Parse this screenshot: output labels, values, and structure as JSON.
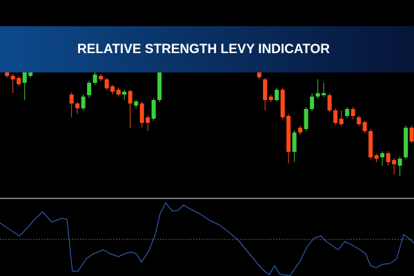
{
  "chart_data": [
    {
      "type": "candlestick",
      "title": "RELATIVE STRENGTH LEVY INDICATOR",
      "x": [
        0,
        1,
        2,
        3,
        4,
        11,
        12,
        13,
        14,
        15,
        16,
        17,
        18,
        19,
        20,
        21,
        22,
        23,
        24,
        25,
        26,
        43,
        44,
        45,
        46,
        47,
        48,
        49,
        50,
        51,
        52,
        53,
        54,
        55,
        56,
        57,
        58,
        59,
        60,
        61,
        62,
        63,
        64,
        65,
        66,
        67,
        68,
        69
      ],
      "open": [
        180,
        175,
        172,
        165,
        175,
        148,
        135,
        128,
        147,
        165,
        175,
        170,
        160,
        155,
        148,
        153,
        132,
        135,
        115,
        113,
        140,
        180,
        170,
        145,
        140,
        155,
        117,
        65,
        100,
        98,
        127,
        145,
        147,
        147,
        125,
        113,
        117,
        127,
        115,
        108,
        95,
        60,
        57,
        63,
        53,
        45,
        57,
        100
      ],
      "high": [
        182,
        178,
        175,
        183,
        183,
        151,
        137,
        148,
        168,
        180,
        178,
        172,
        162,
        158,
        155,
        155,
        140,
        138,
        118,
        143,
        183,
        183,
        172,
        148,
        158,
        158,
        120,
        96,
        103,
        130,
        150,
        170,
        165,
        150,
        128,
        125,
        130,
        130,
        118,
        110,
        98,
        62,
        66,
        66,
        56,
        58,
        103,
        103
      ],
      "low": [
        172,
        150,
        160,
        140,
        172,
        115,
        120,
        125,
        143,
        162,
        167,
        154,
        148,
        145,
        140,
        100,
        128,
        100,
        95,
        110,
        137,
        170,
        125,
        137,
        138,
        112,
        48,
        50,
        90,
        95,
        124,
        142,
        144,
        122,
        104,
        102,
        114,
        112,
        102,
        92,
        54,
        50,
        45,
        45,
        32,
        30,
        55,
        78
      ],
      "close": [
        175,
        170,
        163,
        180,
        180,
        135,
        128,
        145,
        165,
        177,
        170,
        157,
        152,
        148,
        152,
        135,
        138,
        107,
        107,
        140,
        180,
        173,
        140,
        140,
        155,
        115,
        65,
        93,
        93,
        127,
        145,
        150,
        150,
        125,
        107,
        105,
        127,
        117,
        105,
        95,
        57,
        55,
        63,
        50,
        47,
        55,
        100,
        80
      ],
      "up_color": "#3ccf3c",
      "down_color": "#ff4a1c",
      "xlim": [
        -1.2,
        69.4
      ],
      "ylim": [
        0,
        200
      ]
    },
    {
      "type": "line",
      "x": [
        0,
        10,
        28,
        40,
        50,
        62,
        75,
        90,
        97,
        105,
        113,
        125,
        135,
        150,
        160,
        172,
        180,
        190,
        198,
        205,
        215,
        225,
        232,
        240,
        250,
        258,
        266,
        276,
        290,
        305,
        318,
        330,
        345,
        365,
        380,
        390,
        398,
        405,
        420,
        435,
        445,
        455,
        465,
        473,
        480,
        490,
        500,
        510,
        522,
        530,
        537,
        545,
        555,
        565,
        575,
        585,
        592,
        600
      ],
      "values": [
        77,
        70,
        58,
        70,
        82,
        93,
        78,
        84,
        82,
        7,
        7,
        25,
        32,
        38,
        32,
        28,
        32,
        35,
        32,
        20,
        35,
        60,
        90,
        106,
        94,
        95,
        103,
        97,
        90,
        80,
        74,
        65,
        52,
        28,
        10,
        2,
        15,
        3,
        0,
        22,
        42,
        55,
        58,
        50,
        45,
        38,
        50,
        45,
        38,
        32,
        15,
        12,
        17,
        18,
        25,
        60,
        55,
        48
      ],
      "color": "#3a6fd0",
      "reference_line": 53,
      "reference_color": "#888888",
      "xlim": [
        0,
        600
      ],
      "ylim": [
        0,
        110
      ]
    }
  ]
}
